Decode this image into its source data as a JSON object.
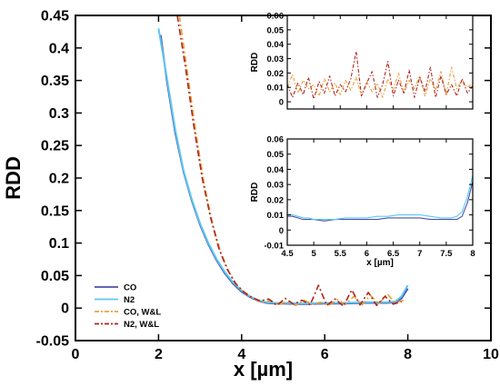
{
  "chart_data": [
    {
      "id": "main",
      "type": "line",
      "xlabel": "x [µm]",
      "ylabel": "RDD",
      "xlim": [
        0,
        10
      ],
      "ylim": [
        -0.05,
        0.45
      ],
      "xticks": [
        0,
        2,
        4,
        6,
        8,
        10
      ],
      "yticks": [
        -0.05,
        0,
        0.05,
        0.1,
        0.15,
        0.2,
        0.25,
        0.3,
        0.35,
        0.4,
        0.45
      ],
      "legend_position": "bottom-left",
      "series": [
        {
          "name": "CO",
          "color": "#4b4fa8",
          "style": "solid",
          "x": [
            2.05,
            2.2,
            2.4,
            2.6,
            2.8,
            3.0,
            3.2,
            3.4,
            3.6,
            3.8,
            4.0,
            4.2,
            4.4,
            4.6,
            4.8,
            5.0,
            5.5,
            6.0,
            6.5,
            7.0,
            7.5,
            7.7,
            7.85,
            8.0
          ],
          "y": [
            0.42,
            0.35,
            0.27,
            0.21,
            0.165,
            0.128,
            0.098,
            0.073,
            0.053,
            0.037,
            0.025,
            0.017,
            0.011,
            0.008,
            0.007,
            0.007,
            0.006,
            0.007,
            0.007,
            0.008,
            0.008,
            0.009,
            0.015,
            0.03
          ]
        },
        {
          "name": "N2",
          "color": "#5bc8f2",
          "style": "solid",
          "x": [
            2.0,
            2.2,
            2.4,
            2.6,
            2.8,
            3.0,
            3.2,
            3.4,
            3.6,
            3.8,
            4.0,
            4.2,
            4.4,
            4.6,
            4.8,
            5.0,
            5.5,
            6.0,
            6.5,
            7.0,
            7.5,
            7.7,
            7.85,
            8.0
          ],
          "y": [
            0.43,
            0.355,
            0.275,
            0.212,
            0.167,
            0.13,
            0.1,
            0.075,
            0.055,
            0.039,
            0.027,
            0.018,
            0.012,
            0.009,
            0.008,
            0.008,
            0.007,
            0.008,
            0.008,
            0.009,
            0.009,
            0.01,
            0.018,
            0.035
          ]
        },
        {
          "name": "CO, W&L",
          "color": "#e7a03a",
          "style": "dashdot",
          "x": [
            2.5,
            2.7,
            2.9,
            3.1,
            3.3,
            3.5,
            3.7,
            3.9,
            4.1,
            4.3,
            4.5,
            4.7,
            4.9,
            5.1,
            5.3,
            5.5,
            5.7,
            5.9,
            6.1,
            6.3,
            6.5,
            6.7,
            6.9,
            7.1,
            7.3,
            7.5,
            7.7,
            7.9
          ],
          "y": [
            0.45,
            0.36,
            0.27,
            0.19,
            0.13,
            0.085,
            0.055,
            0.034,
            0.022,
            0.014,
            0.009,
            0.012,
            0.005,
            0.01,
            0.004,
            0.012,
            0.006,
            0.009,
            0.004,
            0.013,
            0.006,
            0.018,
            0.005,
            0.02,
            0.006,
            0.022,
            0.008,
            0.012
          ]
        },
        {
          "name": "N2, W&L",
          "color": "#b0241c",
          "style": "dashdot",
          "x": [
            2.45,
            2.65,
            2.85,
            3.05,
            3.25,
            3.45,
            3.65,
            3.85,
            4.05,
            4.25,
            4.45,
            4.65,
            4.85,
            5.05,
            5.25,
            5.45,
            5.65,
            5.85,
            6.05,
            6.25,
            6.45,
            6.65,
            6.85,
            7.05,
            7.25,
            7.45,
            7.65,
            7.85
          ],
          "y": [
            0.45,
            0.37,
            0.28,
            0.2,
            0.14,
            0.092,
            0.06,
            0.038,
            0.025,
            0.016,
            0.011,
            0.014,
            0.004,
            0.015,
            0.006,
            0.012,
            0.005,
            0.035,
            0.004,
            0.014,
            0.003,
            0.028,
            0.005,
            0.024,
            0.004,
            0.018,
            0.006,
            0.01
          ]
        }
      ]
    },
    {
      "id": "inset-top",
      "type": "line",
      "ylabel": "RDD",
      "xlim": [
        4.5,
        8
      ],
      "ylim": [
        -0.005,
        0.06
      ],
      "yticks": [
        0,
        0.01,
        0.02,
        0.03,
        0.04,
        0.05,
        0.06
      ],
      "series": [
        {
          "name": "CO, W&L",
          "color": "#e7a03a",
          "style": "dashdot",
          "x": [
            4.5,
            4.6,
            4.7,
            4.8,
            4.9,
            5.0,
            5.1,
            5.2,
            5.3,
            5.4,
            5.5,
            5.6,
            5.7,
            5.8,
            5.9,
            6.0,
            6.1,
            6.2,
            6.3,
            6.4,
            6.5,
            6.6,
            6.7,
            6.8,
            6.9,
            7.0,
            7.1,
            7.2,
            7.3,
            7.4,
            7.5,
            7.6,
            7.7,
            7.8,
            7.9,
            8.0
          ],
          "y": [
            0.01,
            0.019,
            0.006,
            0.015,
            0.009,
            0.012,
            0.004,
            0.016,
            0.007,
            0.013,
            0.005,
            0.015,
            0.008,
            0.017,
            0.004,
            0.014,
            0.007,
            0.013,
            0.003,
            0.016,
            0.008,
            0.02,
            0.006,
            0.015,
            0.009,
            0.018,
            0.004,
            0.016,
            0.008,
            0.021,
            0.005,
            0.024,
            0.009,
            0.015,
            0.01,
            0.013
          ]
        },
        {
          "name": "N2, W&L",
          "color": "#b0241c",
          "style": "dashdot",
          "x": [
            4.5,
            4.6,
            4.7,
            4.8,
            4.9,
            5.0,
            5.1,
            5.2,
            5.3,
            5.4,
            5.5,
            5.6,
            5.7,
            5.8,
            5.9,
            6.0,
            6.1,
            6.2,
            6.3,
            6.4,
            6.5,
            6.6,
            6.7,
            6.8,
            6.9,
            7.0,
            7.1,
            7.2,
            7.3,
            7.4,
            7.5,
            7.6,
            7.7,
            7.8,
            7.9,
            8.0
          ],
          "y": [
            0.012,
            0.003,
            0.013,
            0.005,
            0.017,
            0.002,
            0.014,
            0.006,
            0.018,
            0.004,
            0.012,
            0.007,
            0.016,
            0.035,
            0.004,
            0.013,
            0.021,
            0.003,
            0.012,
            0.028,
            0.004,
            0.015,
            0.006,
            0.022,
            0.003,
            0.017,
            0.007,
            0.024,
            0.003,
            0.018,
            0.005,
            0.012,
            0.004,
            0.016,
            0.006,
            0.011
          ]
        }
      ]
    },
    {
      "id": "inset-bottom",
      "type": "line",
      "xlabel": "x [µm]",
      "ylabel": "RDD",
      "xlim": [
        4.5,
        8
      ],
      "ylim": [
        -0.01,
        0.06
      ],
      "xticks": [
        4.5,
        5,
        5.5,
        6,
        6.5,
        7,
        7.5,
        8
      ],
      "yticks": [
        -0.01,
        0,
        0.01,
        0.02,
        0.03,
        0.04,
        0.05,
        0.06
      ],
      "series": [
        {
          "name": "CO",
          "color": "#4b4fa8",
          "style": "solid",
          "x": [
            4.5,
            4.6,
            4.7,
            4.8,
            4.9,
            5.0,
            5.2,
            5.4,
            5.6,
            5.8,
            6.0,
            6.2,
            6.4,
            6.6,
            6.8,
            7.0,
            7.2,
            7.4,
            7.6,
            7.7,
            7.8,
            7.9,
            8.0
          ],
          "y": [
            0.009,
            0.009,
            0.008,
            0.007,
            0.007,
            0.007,
            0.006,
            0.007,
            0.007,
            0.007,
            0.007,
            0.007,
            0.008,
            0.008,
            0.008,
            0.008,
            0.007,
            0.007,
            0.007,
            0.007,
            0.009,
            0.018,
            0.032
          ]
        },
        {
          "name": "N2",
          "color": "#5bc8f2",
          "style": "solid",
          "x": [
            4.5,
            4.6,
            4.7,
            4.8,
            4.9,
            5.0,
            5.2,
            5.4,
            5.6,
            5.8,
            6.0,
            6.2,
            6.4,
            6.6,
            6.8,
            7.0,
            7.2,
            7.4,
            7.6,
            7.7,
            7.8,
            7.9,
            8.0
          ],
          "y": [
            0.01,
            0.01,
            0.009,
            0.008,
            0.008,
            0.007,
            0.007,
            0.007,
            0.008,
            0.008,
            0.008,
            0.009,
            0.009,
            0.01,
            0.01,
            0.01,
            0.009,
            0.008,
            0.008,
            0.009,
            0.012,
            0.022,
            0.036
          ]
        }
      ]
    }
  ]
}
